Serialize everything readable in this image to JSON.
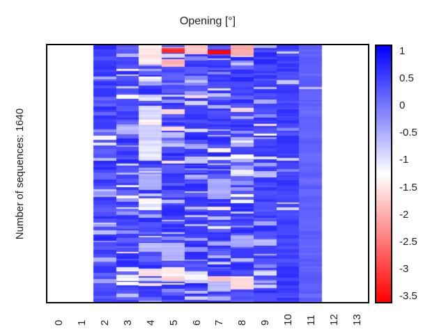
{
  "colors": {
    "background": "#ffffff",
    "border": "#000000",
    "text": "#212121"
  },
  "chart_data": {
    "type": "heatmap",
    "title": "Opening [°]",
    "ylabel": "Number of sequences: 1640",
    "n_rows": 1640,
    "n_cols": 14,
    "x_ticks": [
      "0",
      "1",
      "2",
      "3",
      "4",
      "5",
      "6",
      "7",
      "8",
      "9",
      "10",
      "11",
      "12",
      "13"
    ],
    "x_tick_rotation": 90,
    "grid": false,
    "legend_position": "right-colorbar",
    "colorbar": {
      "ticks": [
        1,
        0.5,
        0,
        -0.5,
        -1,
        -1.5,
        -2,
        -2.5,
        -3,
        -3.5
      ],
      "tick_labels": [
        "1",
        "0.5",
        "0",
        "-0.5",
        "-1",
        "-1.5",
        "-2",
        "-2.5",
        "-3",
        "-3.5"
      ],
      "vmax": 1.1,
      "vmin": -3.6,
      "mid_value": -1.25,
      "high_color": "#0000ff",
      "mid_color": "#ffffff",
      "low_color": "#ff0000"
    },
    "seed": 1640,
    "columns": [
      {
        "x": 0,
        "empty": true
      },
      {
        "x": 1,
        "empty": true
      },
      {
        "x": 2,
        "base": 0.45,
        "noise": 0.3,
        "light_prob": 0.1,
        "white_prob": 0.02,
        "bands": []
      },
      {
        "x": 3,
        "base": 0.45,
        "noise": 0.3,
        "light_prob": 0.2,
        "white_prob": 0.06,
        "bands": [
          [
            0.895,
            0.92,
            -1.1
          ]
        ]
      },
      {
        "x": 4,
        "base": 0.45,
        "noise": 0.3,
        "light_prob": 0.28,
        "white_prob": 0.12,
        "bands": [
          [
            0.0,
            0.075,
            -1.45
          ],
          [
            0.235,
            0.29,
            -0.9
          ],
          [
            0.29,
            0.31,
            -1.35
          ],
          [
            0.31,
            0.37,
            -0.8
          ],
          [
            0.37,
            0.45,
            -1.0
          ],
          [
            0.5,
            0.565,
            -0.55
          ],
          [
            0.77,
            0.805,
            -0.6
          ],
          [
            0.875,
            0.9,
            -1.5
          ]
        ]
      },
      {
        "x": 5,
        "base": 0.45,
        "noise": 0.3,
        "light_prob": 0.22,
        "white_prob": 0.08,
        "bands": [
          [
            0.012,
            0.03,
            -3.2
          ],
          [
            0.055,
            0.085,
            -1.9
          ],
          [
            0.25,
            0.268,
            -1.7
          ],
          [
            0.77,
            0.84,
            -0.55
          ],
          [
            0.865,
            0.9,
            -1.35
          ],
          [
            0.9,
            0.915,
            -1.7
          ]
        ]
      },
      {
        "x": 6,
        "base": 0.5,
        "noise": 0.28,
        "light_prob": 0.18,
        "white_prob": 0.05,
        "bands": [
          [
            0.0,
            0.035,
            -1.8
          ],
          [
            0.895,
            0.912,
            -1.25
          ]
        ]
      },
      {
        "x": 7,
        "base": 0.45,
        "noise": 0.3,
        "light_prob": 0.22,
        "white_prob": 0.08,
        "bands": [
          [
            0.018,
            0.034,
            -3.5
          ],
          [
            0.52,
            0.6,
            -0.5
          ],
          [
            0.9,
            0.92,
            -1.8
          ],
          [
            0.92,
            0.96,
            -0.6
          ]
        ]
      },
      {
        "x": 8,
        "base": 0.45,
        "noise": 0.3,
        "light_prob": 0.22,
        "white_prob": 0.07,
        "bands": [
          [
            0.0,
            0.04,
            -2.0
          ],
          [
            0.245,
            0.26,
            -1.6
          ],
          [
            0.74,
            0.785,
            -0.5
          ],
          [
            0.9,
            0.95,
            -1.55
          ]
        ]
      },
      {
        "x": 9,
        "base": 0.5,
        "noise": 0.25,
        "light_prob": 0.15,
        "white_prob": 0.03,
        "bands": [
          [
            0.0,
            0.012,
            -0.5
          ],
          [
            0.49,
            0.515,
            -0.6
          ],
          [
            0.755,
            0.78,
            -0.65
          ]
        ]
      },
      {
        "x": 10,
        "base": 0.5,
        "noise": 0.18,
        "light_prob": 0.06,
        "white_prob": 0.0,
        "bands": []
      },
      {
        "x": 11,
        "base": 0.2,
        "noise": 0.1,
        "light_prob": 0.01,
        "white_prob": 0.0,
        "bands": []
      },
      {
        "x": 12,
        "empty": true
      },
      {
        "x": 13,
        "empty": true
      }
    ]
  }
}
